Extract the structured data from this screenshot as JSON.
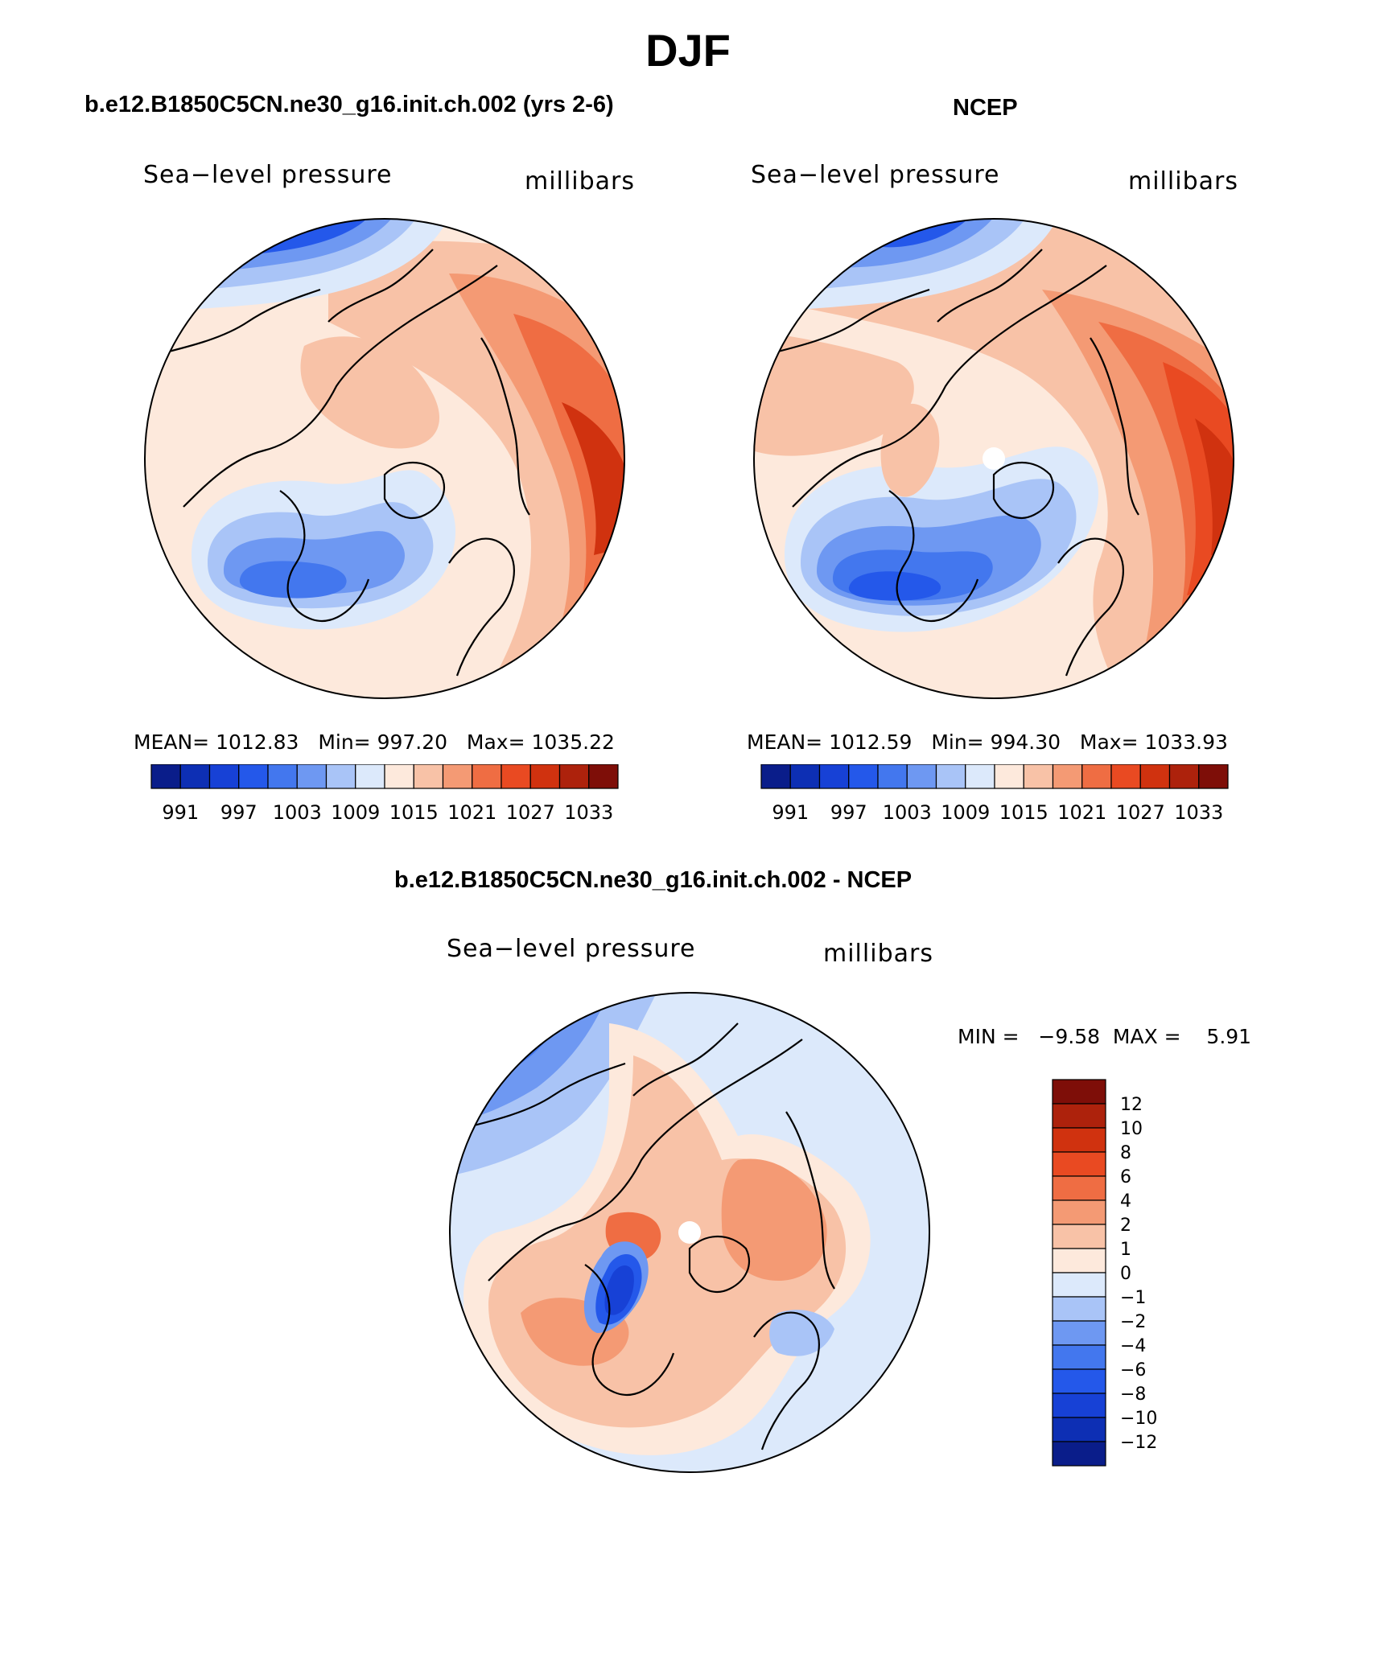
{
  "page": {
    "title": "DJF"
  },
  "colors": {
    "abs_palette": [
      "#0a1d8a",
      "#0d2fb4",
      "#1741d6",
      "#2458ea",
      "#4377ee",
      "#6e98f2",
      "#a9c4f7",
      "#dce9fb",
      "#fde9dc",
      "#f8c2a7",
      "#f49a74",
      "#ef6d43",
      "#e94a22",
      "#d0320f",
      "#ad220c",
      "#7e0e08"
    ],
    "diff_palette": [
      "#0a1d8a",
      "#0d2fb4",
      "#1741d6",
      "#2458ea",
      "#4377ee",
      "#6e98f2",
      "#a9c4f7",
      "#dce9fb",
      "#fde9dc",
      "#f8c2a7",
      "#f49a74",
      "#ef6d43",
      "#e94a22",
      "#d0320f",
      "#ad220c",
      "#7e0e08"
    ],
    "land_outline": "#000000",
    "missing": "#ffffff"
  },
  "chart_data": [
    {
      "type": "heatmap",
      "panel": "model",
      "title": "b.e12.B1850C5CN.ne30_g16.init.ch.002 (yrs 2-6)",
      "variable": "Sea−level pressure",
      "units": "millibars",
      "projection": "north polar stereographic",
      "stats": {
        "mean_label": "MEAN=",
        "mean": "1012.83",
        "min_label": "Min=",
        "min": "997.20",
        "max_label": "Max=",
        "max": "1035.22"
      },
      "colorbar": {
        "orientation": "horizontal",
        "levels": [
          991,
          994,
          997,
          1000,
          1003,
          1006,
          1009,
          1012,
          1015,
          1018,
          1021,
          1024,
          1027,
          1030,
          1033
        ],
        "tick_labels": [
          "991",
          "997",
          "1003",
          "1009",
          "1015",
          "1021",
          "1027",
          "1033"
        ]
      }
    },
    {
      "type": "heatmap",
      "panel": "obs",
      "title": "NCEP",
      "variable": "Sea−level pressure",
      "units": "millibars",
      "projection": "north polar stereographic",
      "stats": {
        "mean_label": "MEAN=",
        "mean": "1012.59",
        "min_label": "Min=",
        "min": "994.30",
        "max_label": "Max=",
        "max": "1033.93"
      },
      "colorbar": {
        "orientation": "horizontal",
        "levels": [
          991,
          994,
          997,
          1000,
          1003,
          1006,
          1009,
          1012,
          1015,
          1018,
          1021,
          1024,
          1027,
          1030,
          1033
        ],
        "tick_labels": [
          "991",
          "997",
          "1003",
          "1009",
          "1015",
          "1021",
          "1027",
          "1033"
        ]
      }
    },
    {
      "type": "heatmap",
      "panel": "difference",
      "title": "b.e12.B1850C5CN.ne30_g16.init.ch.002 - NCEP",
      "variable": "Sea−level pressure",
      "units": "millibars",
      "projection": "north polar stereographic",
      "stats": {
        "min_label": "MIN =",
        "min": "−9.58",
        "max_label": "MAX =",
        "max": "5.91"
      },
      "colorbar": {
        "orientation": "vertical",
        "levels": [
          -12,
          -10,
          -8,
          -6,
          -4,
          -2,
          -1,
          0,
          1,
          2,
          4,
          6,
          8,
          10,
          12
        ],
        "tick_labels": [
          "12",
          "10",
          "8",
          "6",
          "4",
          "2",
          "1",
          "0",
          "−1",
          "−2",
          "−4",
          "−6",
          "−8",
          "−10",
          "−12"
        ]
      }
    }
  ]
}
